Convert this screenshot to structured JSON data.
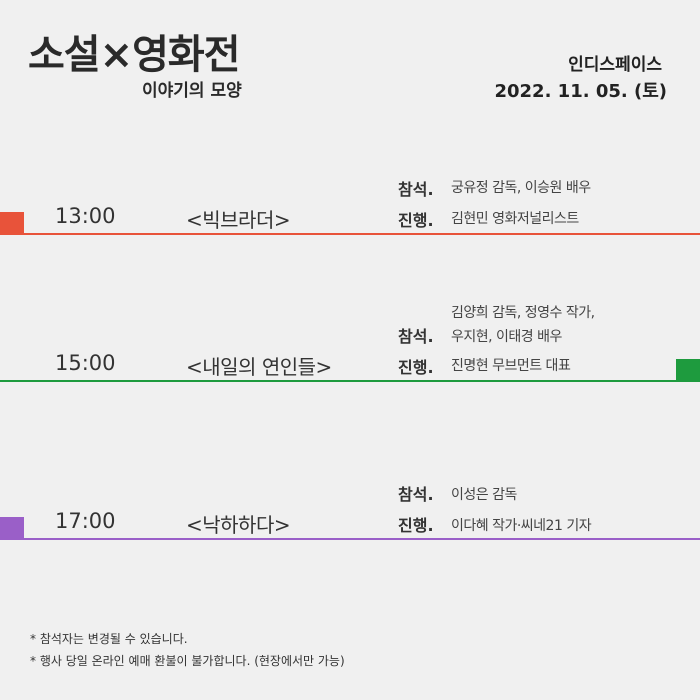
{
  "header": {
    "title": "소설×영화전",
    "subtitle": "이야기의 모양",
    "venue": "인디스페이스",
    "date": "2022. 11. 05. (토)"
  },
  "labels": {
    "guest": "참석.",
    "host": "진행."
  },
  "sessions": [
    {
      "time": "13:00",
      "film": "<빅브라더>",
      "guests": [
        "궁유정 감독, 이승원 배우"
      ],
      "host": "김현민 영화저널리스트",
      "color": "#e8533a",
      "marker_side": "left"
    },
    {
      "time": "15:00",
      "film": "<내일의 연인들>",
      "guests": [
        "김양희 감독, 정영수 작가,",
        "우지현, 이태경 배우"
      ],
      "host": "진명현 무브먼트 대표",
      "color": "#1e9b3e",
      "marker_side": "right"
    },
    {
      "time": "17:00",
      "film": "<낙하하다>",
      "guests": [
        "이성은 감독"
      ],
      "host": "이다혜 작가·씨네21 기자",
      "color": "#9a5fc8",
      "marker_side": "left"
    }
  ],
  "notes": [
    "* 참석자는 변경될 수 있습니다.",
    "* 행사 당일 온라인 예매 환불이 불가합니다. (현장에서만 가능)"
  ]
}
